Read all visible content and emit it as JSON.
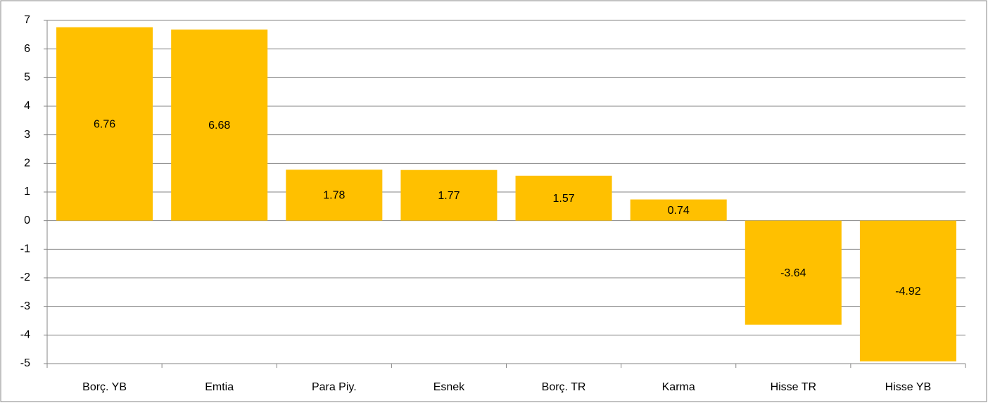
{
  "chart_data": {
    "type": "bar",
    "categories": [
      "Borç. YB",
      "Emtia",
      "Para Piy.",
      "Esnek",
      "Borç. TR",
      "Karma",
      "Hisse TR",
      "Hisse YB"
    ],
    "values": [
      6.76,
      6.68,
      1.78,
      1.77,
      1.57,
      0.74,
      -3.64,
      -4.92
    ],
    "color": "#ffc000",
    "ylim": [
      -5,
      7
    ],
    "yticks": [
      -5,
      -4,
      -3,
      -2,
      -1,
      0,
      1,
      2,
      3,
      4,
      5,
      6,
      7
    ],
    "grid": true
  }
}
